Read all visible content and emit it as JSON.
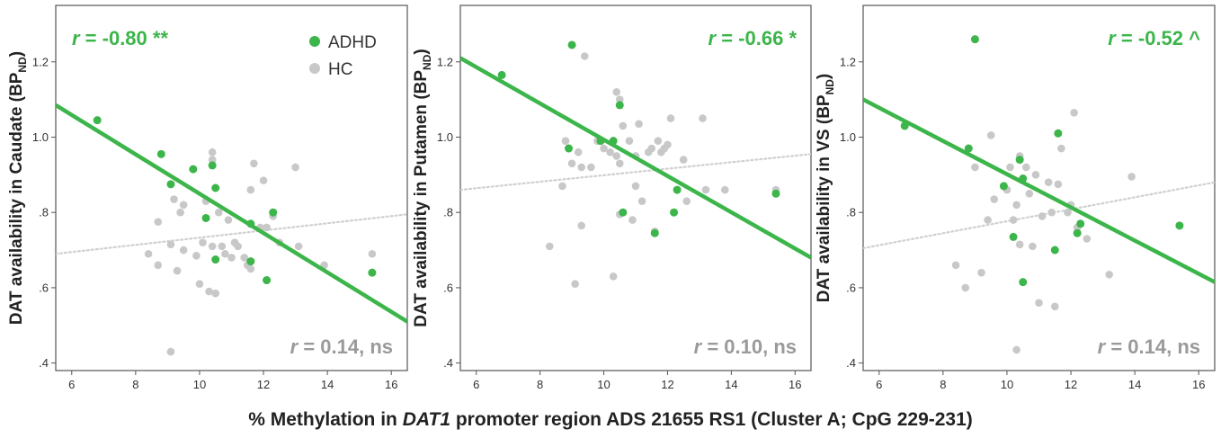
{
  "colors": {
    "adhd": "#3cb54a",
    "hc": "#c8c8c8",
    "hc_line": "#d0d0d0",
    "ns_text": "#9a9a9a",
    "frame": "#555555"
  },
  "legend": {
    "adhd": "ADHD",
    "hc": "HC"
  },
  "x_axis_label": {
    "prefix": "% Methylation in ",
    "gene": "DAT1",
    "suffix": " promoter region ADS 21655 RS1 (Cluster A; CpG 229-231)"
  },
  "chart_data": [
    {
      "type": "scatter",
      "ylabel_main": "DAT availability in Caudate (BP",
      "ylabel_sub": "ND",
      "ylabel_close": ")",
      "xlim": [
        5.5,
        16.5
      ],
      "ylim": [
        0.38,
        1.35
      ],
      "x_ticks": [
        6,
        8,
        10,
        12,
        14,
        16
      ],
      "y_ticks": [
        0.4,
        0.6,
        0.8,
        1.0,
        1.2
      ],
      "y_tick_labels": [
        ".4",
        ".6",
        ".8",
        "1.0",
        "1.2"
      ],
      "adhd_r": {
        "r": "r",
        "value": " = -0.80 **"
      },
      "hc_r": {
        "r": "r",
        "value": " = 0.14, ns"
      },
      "adhd_fit": [
        [
          5.5,
          1.085
        ],
        [
          16.5,
          0.51
        ]
      ],
      "hc_fit": [
        [
          5.5,
          0.69
        ],
        [
          16.5,
          0.795
        ]
      ],
      "series": [
        {
          "name": "ADHD",
          "points": [
            [
              6.8,
              1.045
            ],
            [
              8.8,
              0.955
            ],
            [
              9.1,
              0.875
            ],
            [
              9.8,
              0.915
            ],
            [
              10.2,
              0.785
            ],
            [
              10.4,
              0.925
            ],
            [
              10.5,
              0.865
            ],
            [
              10.5,
              0.675
            ],
            [
              11.6,
              0.77
            ],
            [
              11.6,
              0.67
            ],
            [
              12.3,
              0.8
            ],
            [
              12.1,
              0.62
            ],
            [
              15.4,
              0.64
            ]
          ]
        },
        {
          "name": "HC",
          "points": [
            [
              8.4,
              0.69
            ],
            [
              8.7,
              0.775
            ],
            [
              8.7,
              0.66
            ],
            [
              9.1,
              0.715
            ],
            [
              9.2,
              0.835
            ],
            [
              9.3,
              0.645
            ],
            [
              9.4,
              0.8
            ],
            [
              9.5,
              0.82
            ],
            [
              9.5,
              0.7
            ],
            [
              9.9,
              0.685
            ],
            [
              10.0,
              0.61
            ],
            [
              10.1,
              0.72
            ],
            [
              10.2,
              0.83
            ],
            [
              10.3,
              0.59
            ],
            [
              10.4,
              0.96
            ],
            [
              10.4,
              0.94
            ],
            [
              10.4,
              0.71
            ],
            [
              10.5,
              0.585
            ],
            [
              10.6,
              0.8
            ],
            [
              10.7,
              0.71
            ],
            [
              10.8,
              0.69
            ],
            [
              10.9,
              0.78
            ],
            [
              11.0,
              0.68
            ],
            [
              11.1,
              0.72
            ],
            [
              11.2,
              0.71
            ],
            [
              11.4,
              0.68
            ],
            [
              11.5,
              0.66
            ],
            [
              11.6,
              0.65
            ],
            [
              11.6,
              0.86
            ],
            [
              11.7,
              0.93
            ],
            [
              11.9,
              0.76
            ],
            [
              12.0,
              0.885
            ],
            [
              12.1,
              0.76
            ],
            [
              12.3,
              0.79
            ],
            [
              12.5,
              0.72
            ],
            [
              13.0,
              0.92
            ],
            [
              13.1,
              0.71
            ],
            [
              13.9,
              0.66
            ],
            [
              15.4,
              0.69
            ],
            [
              9.1,
              0.43
            ]
          ]
        }
      ]
    },
    {
      "type": "scatter",
      "ylabel_main": "DAT availability in Putamen (BP",
      "ylabel_sub": "ND",
      "ylabel_close": ")",
      "xlim": [
        5.5,
        16.5
      ],
      "ylim": [
        0.38,
        1.35
      ],
      "x_ticks": [
        6,
        8,
        10,
        12,
        14,
        16
      ],
      "y_ticks": [
        0.4,
        0.6,
        0.8,
        1.0,
        1.2
      ],
      "y_tick_labels": [
        ".4",
        ".6",
        ".8",
        "1.0",
        "1.2"
      ],
      "adhd_r": {
        "r": "r",
        "value": " = -0.66 *"
      },
      "hc_r": {
        "r": "r",
        "value": " = 0.10, ns"
      },
      "adhd_fit": [
        [
          5.5,
          1.21
        ],
        [
          16.5,
          0.68
        ]
      ],
      "hc_fit": [
        [
          5.5,
          0.86
        ],
        [
          16.5,
          0.955
        ]
      ],
      "series": [
        {
          "name": "ADHD",
          "points": [
            [
              6.8,
              1.165
            ],
            [
              9.0,
              1.245
            ],
            [
              8.9,
              0.97
            ],
            [
              9.9,
              0.99
            ],
            [
              10.3,
              0.99
            ],
            [
              10.5,
              1.085
            ],
            [
              10.6,
              0.8
            ],
            [
              11.6,
              0.745
            ],
            [
              12.2,
              0.8
            ],
            [
              12.3,
              0.86
            ],
            [
              15.4,
              0.85
            ]
          ]
        },
        {
          "name": "HC",
          "points": [
            [
              8.3,
              0.71
            ],
            [
              8.7,
              0.87
            ],
            [
              8.8,
              0.99
            ],
            [
              9.0,
              0.93
            ],
            [
              9.1,
              0.61
            ],
            [
              9.2,
              0.96
            ],
            [
              9.3,
              0.92
            ],
            [
              9.3,
              0.765
            ],
            [
              9.4,
              1.215
            ],
            [
              9.6,
              0.92
            ],
            [
              9.8,
              0.99
            ],
            [
              10.0,
              0.97
            ],
            [
              10.2,
              0.96
            ],
            [
              10.3,
              0.63
            ],
            [
              10.4,
              1.12
            ],
            [
              10.4,
              0.95
            ],
            [
              10.5,
              1.1
            ],
            [
              10.5,
              0.93
            ],
            [
              10.5,
              0.795
            ],
            [
              10.6,
              1.03
            ],
            [
              10.8,
              0.99
            ],
            [
              10.9,
              0.78
            ],
            [
              11.0,
              0.95
            ],
            [
              11.0,
              0.87
            ],
            [
              11.1,
              1.035
            ],
            [
              11.2,
              0.83
            ],
            [
              11.4,
              0.96
            ],
            [
              11.5,
              0.97
            ],
            [
              11.6,
              0.75
            ],
            [
              11.7,
              0.99
            ],
            [
              11.8,
              0.96
            ],
            [
              11.9,
              0.97
            ],
            [
              12.0,
              0.98
            ],
            [
              12.1,
              1.05
            ],
            [
              12.5,
              0.94
            ],
            [
              12.6,
              0.83
            ],
            [
              13.1,
              1.05
            ],
            [
              13.2,
              0.86
            ],
            [
              13.8,
              0.86
            ],
            [
              15.4,
              0.86
            ]
          ]
        }
      ]
    },
    {
      "type": "scatter",
      "ylabel_main": "DAT availability in VS (BP",
      "ylabel_sub": "ND",
      "ylabel_close": ")",
      "xlim": [
        5.5,
        16.5
      ],
      "ylim": [
        0.38,
        1.35
      ],
      "x_ticks": [
        6,
        8,
        10,
        12,
        14,
        16
      ],
      "y_ticks": [
        0.4,
        0.6,
        0.8,
        1.0,
        1.2
      ],
      "y_tick_labels": [
        ".4",
        ".6",
        ".8",
        "1.0",
        "1.2"
      ],
      "adhd_r": {
        "r": "r",
        "value": " = -0.52 ^"
      },
      "hc_r": {
        "r": "r",
        "value": " = 0.14, ns"
      },
      "adhd_fit": [
        [
          5.5,
          1.1
        ],
        [
          16.5,
          0.615
        ]
      ],
      "hc_fit": [
        [
          5.5,
          0.705
        ],
        [
          16.5,
          0.88
        ]
      ],
      "series": [
        {
          "name": "ADHD",
          "points": [
            [
              6.8,
              1.03
            ],
            [
              8.8,
              0.97
            ],
            [
              9.0,
              1.26
            ],
            [
              9.9,
              0.87
            ],
            [
              10.2,
              0.735
            ],
            [
              10.4,
              0.94
            ],
            [
              10.5,
              0.89
            ],
            [
              10.5,
              0.615
            ],
            [
              11.6,
              1.01
            ],
            [
              11.5,
              0.7
            ],
            [
              12.2,
              0.745
            ],
            [
              12.3,
              0.77
            ],
            [
              15.4,
              0.765
            ]
          ]
        },
        {
          "name": "HC",
          "points": [
            [
              8.4,
              0.66
            ],
            [
              8.7,
              0.6
            ],
            [
              9.0,
              0.92
            ],
            [
              9.2,
              0.64
            ],
            [
              9.4,
              0.78
            ],
            [
              9.5,
              1.005
            ],
            [
              9.6,
              0.835
            ],
            [
              9.9,
              0.87
            ],
            [
              10.0,
              0.86
            ],
            [
              10.1,
              0.92
            ],
            [
              10.2,
              0.78
            ],
            [
              10.3,
              0.82
            ],
            [
              10.3,
              0.435
            ],
            [
              10.4,
              0.95
            ],
            [
              10.4,
              0.715
            ],
            [
              10.5,
              0.89
            ],
            [
              10.6,
              0.92
            ],
            [
              10.7,
              0.85
            ],
            [
              10.8,
              0.71
            ],
            [
              10.9,
              0.9
            ],
            [
              11.0,
              0.56
            ],
            [
              11.1,
              0.79
            ],
            [
              11.3,
              0.88
            ],
            [
              11.4,
              0.8
            ],
            [
              11.5,
              0.55
            ],
            [
              11.6,
              0.875
            ],
            [
              11.7,
              0.97
            ],
            [
              11.9,
              0.8
            ],
            [
              12.0,
              0.82
            ],
            [
              12.1,
              1.065
            ],
            [
              12.2,
              0.76
            ],
            [
              12.5,
              0.73
            ],
            [
              13.2,
              0.635
            ],
            [
              13.9,
              0.895
            ]
          ]
        }
      ]
    }
  ]
}
